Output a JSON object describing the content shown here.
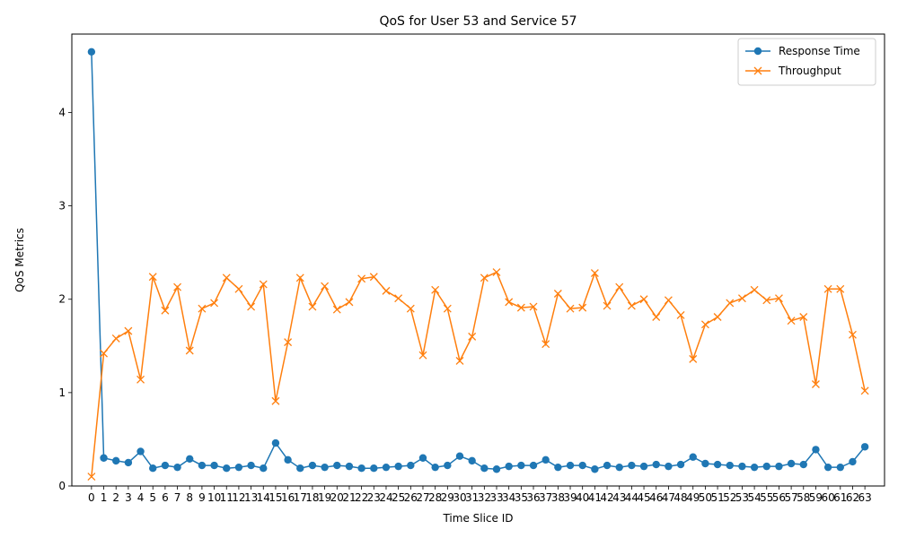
{
  "chart_data": {
    "type": "line",
    "title": "QoS for User 53 and Service 57",
    "xlabel": "Time Slice ID",
    "ylabel": "QoS Metrics",
    "ylim": [
      0,
      4.84
    ],
    "y_ticks": [
      0,
      1,
      2,
      3,
      4
    ],
    "grid": false,
    "legend_position": "top-right",
    "x": [
      0,
      1,
      2,
      3,
      4,
      5,
      6,
      7,
      8,
      9,
      10,
      11,
      12,
      13,
      14,
      15,
      16,
      17,
      18,
      19,
      20,
      21,
      22,
      23,
      24,
      25,
      26,
      27,
      28,
      29,
      30,
      31,
      32,
      33,
      34,
      35,
      36,
      37,
      38,
      39,
      40,
      41,
      42,
      43,
      44,
      45,
      46,
      47,
      48,
      49,
      50,
      51,
      52,
      53,
      54,
      55,
      56,
      57,
      58,
      59,
      60,
      61,
      62,
      63
    ],
    "series": [
      {
        "name": "Response Time",
        "color": "#1f77b4",
        "marker": "circle",
        "values": [
          4.65,
          0.3,
          0.27,
          0.25,
          0.37,
          0.19,
          0.22,
          0.2,
          0.29,
          0.22,
          0.22,
          0.19,
          0.2,
          0.22,
          0.19,
          0.46,
          0.28,
          0.19,
          0.22,
          0.2,
          0.22,
          0.21,
          0.19,
          0.19,
          0.2,
          0.21,
          0.22,
          0.3,
          0.2,
          0.22,
          0.32,
          0.27,
          0.19,
          0.18,
          0.21,
          0.22,
          0.22,
          0.28,
          0.2,
          0.22,
          0.22,
          0.18,
          0.22,
          0.2,
          0.22,
          0.21,
          0.23,
          0.21,
          0.23,
          0.31,
          0.24,
          0.23,
          0.22,
          0.21,
          0.2,
          0.21,
          0.21,
          0.24,
          0.23,
          0.39,
          0.2,
          0.2,
          0.26,
          0.42
        ]
      },
      {
        "name": "Throughput",
        "color": "#ff7f0e",
        "marker": "x",
        "values": [
          0.1,
          1.42,
          1.58,
          1.66,
          1.14,
          2.24,
          1.88,
          2.13,
          1.45,
          1.9,
          1.96,
          2.23,
          2.11,
          1.92,
          2.16,
          0.91,
          1.54,
          2.23,
          1.92,
          2.14,
          1.89,
          1.97,
          2.22,
          2.24,
          2.09,
          2.01,
          1.9,
          1.4,
          2.1,
          1.9,
          1.34,
          1.6,
          2.23,
          2.29,
          1.97,
          1.91,
          1.92,
          1.52,
          2.06,
          1.9,
          1.91,
          2.28,
          1.93,
          2.13,
          1.93,
          2.0,
          1.81,
          1.99,
          1.83,
          1.36,
          1.73,
          1.81,
          1.96,
          2.01,
          2.1,
          1.99,
          2.01,
          1.77,
          1.81,
          1.09,
          2.11,
          2.11,
          1.62,
          1.02
        ]
      }
    ]
  }
}
